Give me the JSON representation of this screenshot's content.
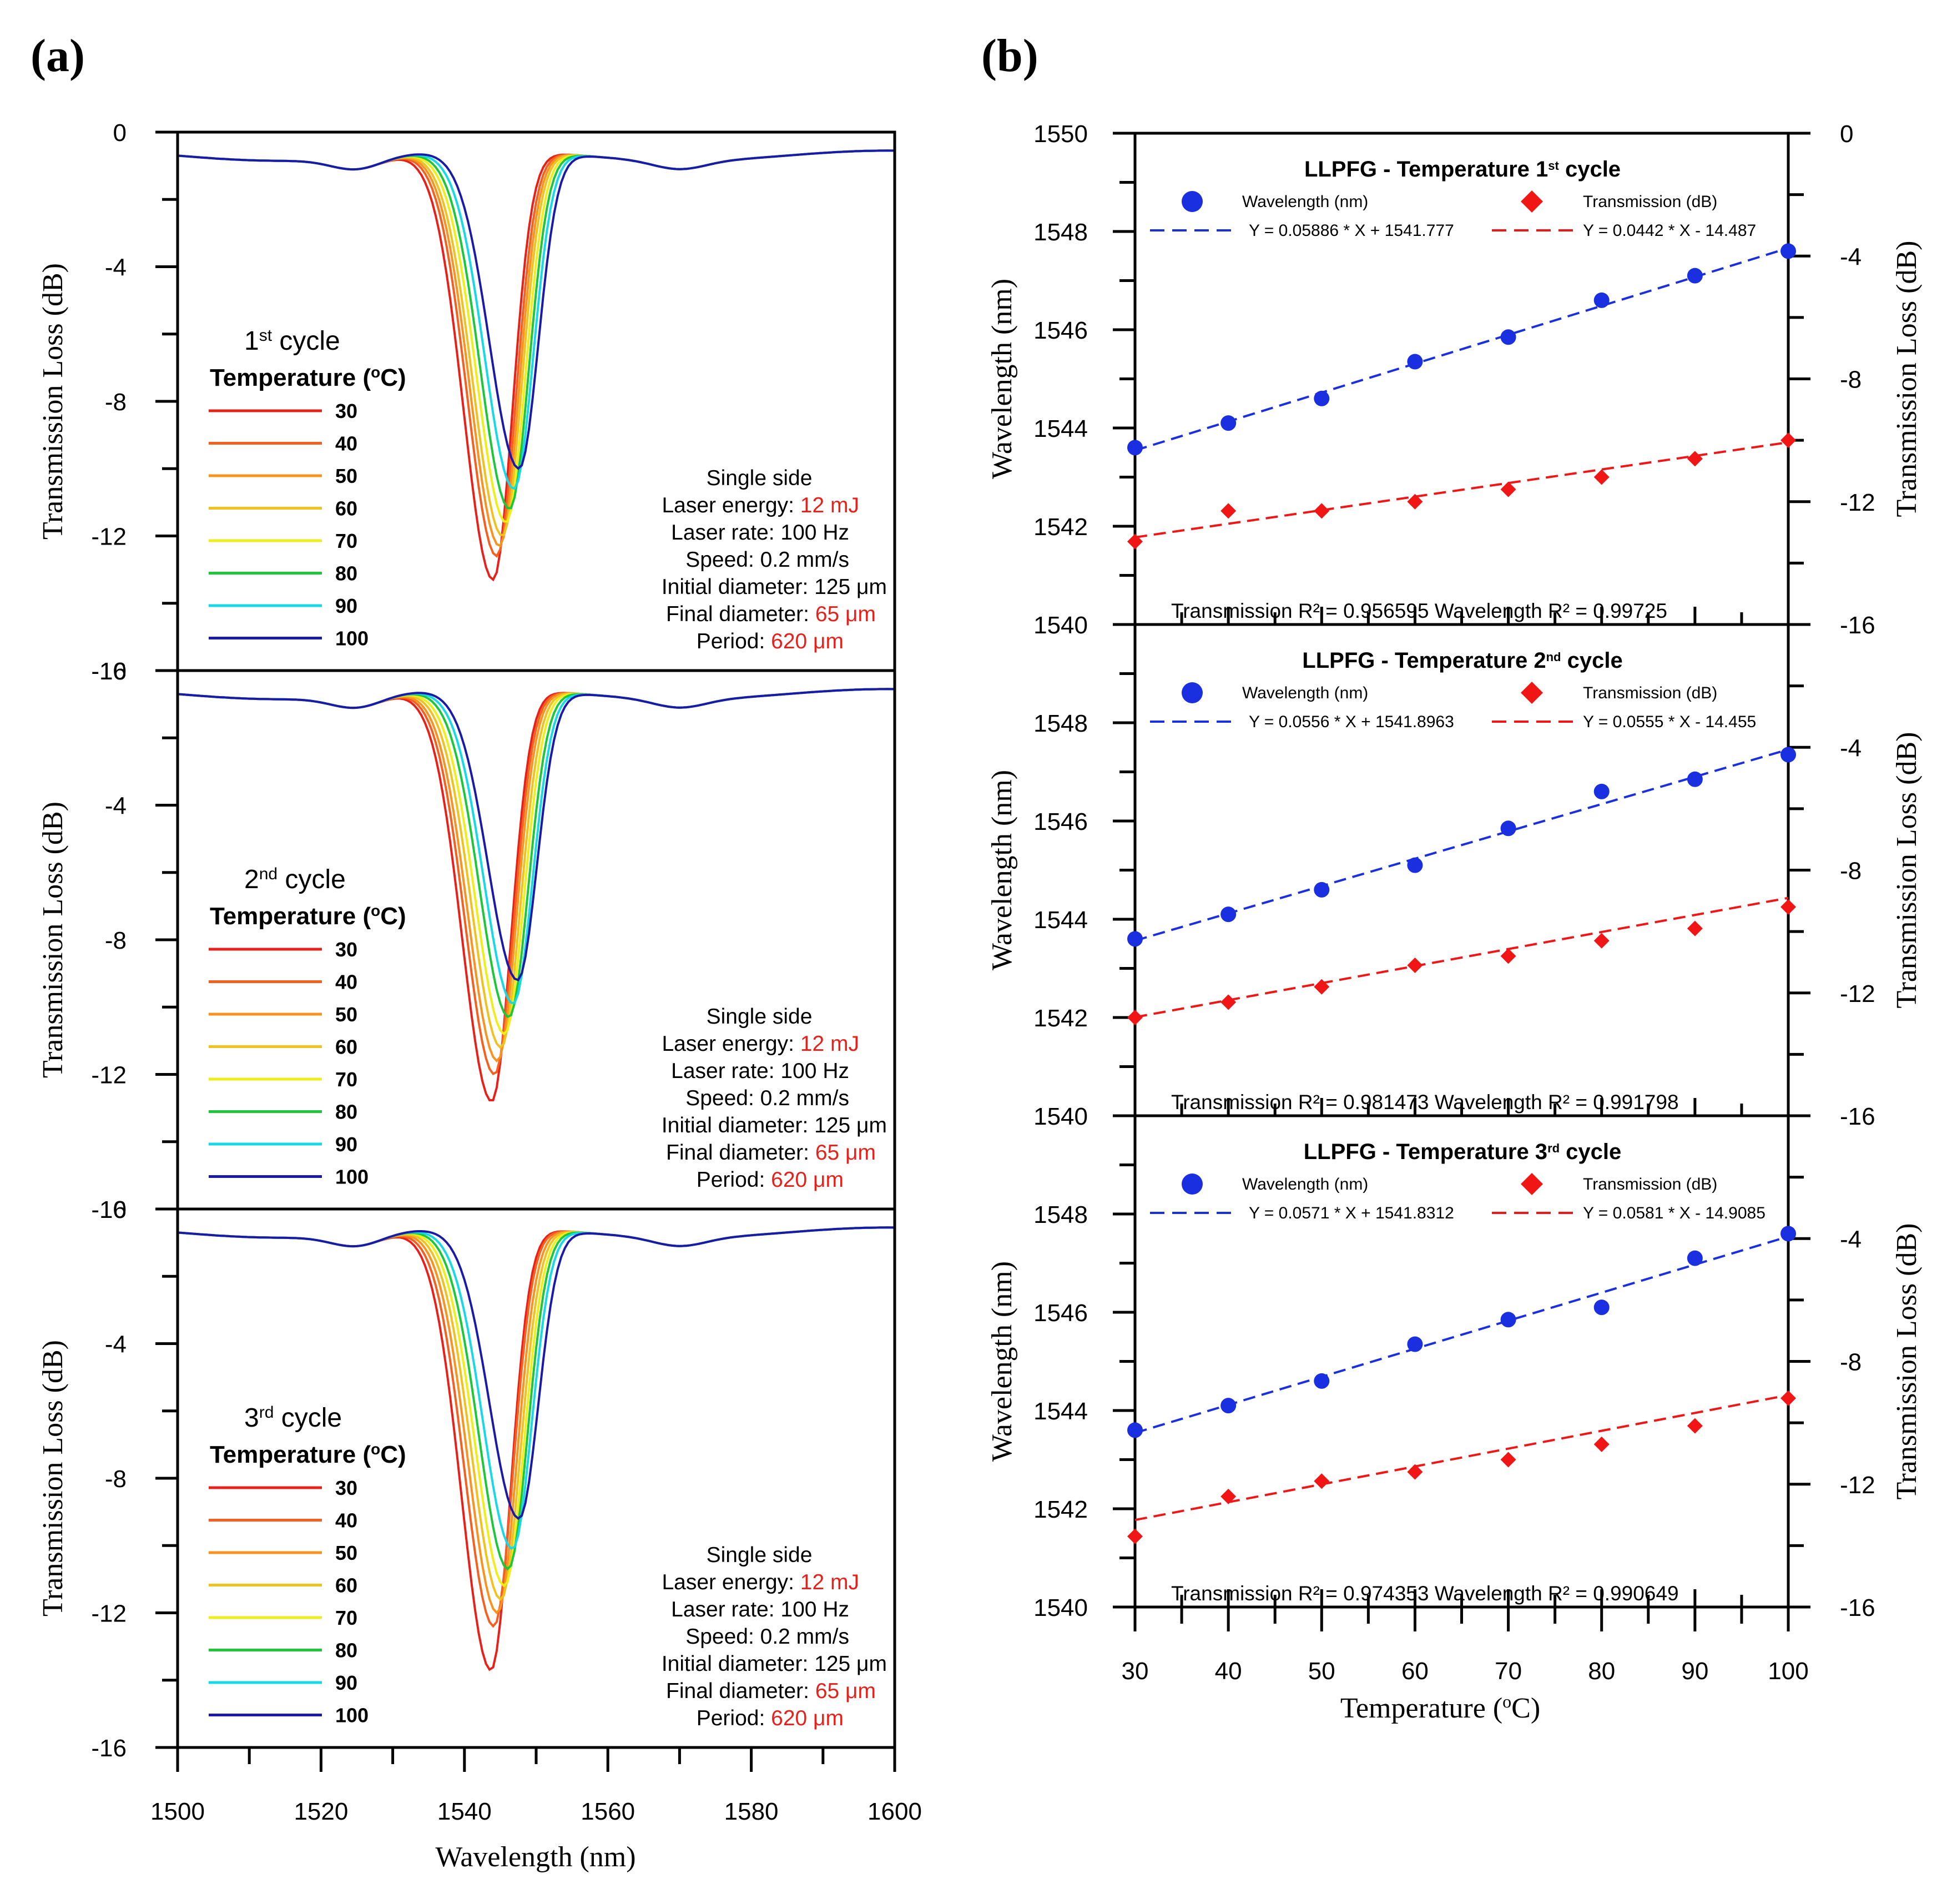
{
  "colors": {
    "series": [
      "#e8201a",
      "#f4601f",
      "#f8931f",
      "#f0c21f",
      "#eeee1a",
      "#1ec63a",
      "#17d9e6",
      "#1a1aa8"
    ],
    "wavelength_marker": "#1a2fe0",
    "transmission_marker": "#f01616",
    "highlight": "#e8201a"
  },
  "panel_a": {
    "letter_open": "(",
    "letter": "a",
    "letter_close": ")",
    "ylabel": "Transmission Loss (dB)",
    "xlabel": "Wavelength (nm)",
    "x_ticks": [
      "1500",
      "1520",
      "1540",
      "1560",
      "1580",
      "1600"
    ],
    "y_ticks": [
      "0",
      "-4",
      "-8",
      "-12",
      "-16"
    ],
    "legend_title": "Temperature (",
    "legend_title_sup": "o",
    "legend_title_end": "C)",
    "legend_items": [
      "30",
      "40",
      "50",
      "60",
      "70",
      "80",
      "90",
      "100"
    ],
    "annotations": {
      "mode": "Single side",
      "energy_label": "Laser energy: ",
      "energy_value": "12 mJ",
      "rate": "Laser rate: 100 Hz",
      "speed": "Speed: 0.2 mm/s",
      "initial": "Initial diameter: 125 μm",
      "final_label": "Final diameter: ",
      "final_value": "65 μm",
      "period_label": "Period:  ",
      "period_value": "620 μm"
    },
    "cycles": [
      {
        "num": "1",
        "sup": "st",
        "word": " cycle"
      },
      {
        "num": "2",
        "sup": "nd",
        "word": " cycle"
      },
      {
        "num": "3",
        "sup": "rd",
        "word": " cycle"
      }
    ]
  },
  "panel_b": {
    "letter_open": "(",
    "letter": "b",
    "letter_close": ")",
    "ylabel_left": "Wavelength (nm)",
    "ylabel_right": "Transmission Loss (dB)",
    "xlabel": "Temperature (",
    "xlabel_sup": "o",
    "xlabel_end": "C)",
    "x_ticks": [
      "30",
      "40",
      "50",
      "60",
      "70",
      "80",
      "90",
      "100"
    ],
    "left_ticks": [
      "1550",
      "1548",
      "1546",
      "1544",
      "1542",
      "1540"
    ],
    "right_ticks": [
      "0",
      "-4",
      "-8",
      "-12",
      "-16"
    ],
    "legend_wavelength": "Wavelength (nm)",
    "legend_transmission": "Transmission (dB)",
    "subplots": [
      {
        "title": "LLPFG - Temperature 1",
        "title_sup": "st",
        "title_end": " cycle",
        "wavelength_fit": "Y = 0.05886 * X + 1541.777",
        "transmission_fit": "Y = 0.0442 * X - 14.487",
        "r2_text": "Transmission R² = 0.956595     Wavelength    R² = 0.99725"
      },
      {
        "title": "LLPFG - Temperature 2",
        "title_sup": "nd",
        "title_end": " cycle",
        "wavelength_fit": "Y = 0.0556 * X + 1541.8963",
        "transmission_fit": "Y = 0.0555 * X - 14.455",
        "r2_text": "Transmission R² = 0.981473   Wavelength    R² = 0.991798"
      },
      {
        "title": "LLPFG - Temperature 3",
        "title_sup": "rd",
        "title_end": " cycle",
        "wavelength_fit": "Y = 0.0571 * X + 1541.8312",
        "transmission_fit": "Y = 0.0581 * X - 14.9085",
        "r2_text": "Transmission R² =  0.974353   Wavelength    R² = 0.990649"
      }
    ]
  },
  "chart_data": [
    {
      "type": "line",
      "title": "(a) 1st cycle",
      "xlabel": "Wavelength (nm)",
      "ylabel": "Transmission Loss (dB)",
      "xlim": [
        1500,
        1600
      ],
      "ylim": [
        -16,
        0
      ],
      "series": [
        {
          "name": "30",
          "dip_center": 1544.0,
          "dip_depth": -13.3
        },
        {
          "name": "40",
          "dip_center": 1544.5,
          "dip_depth": -12.6
        },
        {
          "name": "50",
          "dip_center": 1544.9,
          "dip_depth": -12.3
        },
        {
          "name": "60",
          "dip_center": 1545.3,
          "dip_depth": -12.0
        },
        {
          "name": "70",
          "dip_center": 1545.8,
          "dip_depth": -11.6
        },
        {
          "name": "80",
          "dip_center": 1546.3,
          "dip_depth": -11.2
        },
        {
          "name": "90",
          "dip_center": 1546.9,
          "dip_depth": -10.6
        },
        {
          "name": "100",
          "dip_center": 1547.6,
          "dip_depth": -10.0
        }
      ]
    },
    {
      "type": "line",
      "title": "(a) 2nd cycle",
      "xlabel": "Wavelength (nm)",
      "ylabel": "Transmission Loss (dB)",
      "xlim": [
        1500,
        1600
      ],
      "ylim": [
        -16,
        0
      ],
      "series": [
        {
          "name": "30",
          "dip_center": 1543.8,
          "dip_depth": -12.8
        },
        {
          "name": "40",
          "dip_center": 1544.2,
          "dip_depth": -12.0
        },
        {
          "name": "50",
          "dip_center": 1544.6,
          "dip_depth": -11.6
        },
        {
          "name": "60",
          "dip_center": 1545.1,
          "dip_depth": -11.2
        },
        {
          "name": "70",
          "dip_center": 1545.6,
          "dip_depth": -10.8
        },
        {
          "name": "80",
          "dip_center": 1546.2,
          "dip_depth": -10.3
        },
        {
          "name": "90",
          "dip_center": 1546.8,
          "dip_depth": -9.9
        },
        {
          "name": "100",
          "dip_center": 1547.4,
          "dip_depth": -9.2
        }
      ]
    },
    {
      "type": "line",
      "title": "(a) 3rd cycle",
      "xlabel": "Wavelength (nm)",
      "ylabel": "Transmission Loss (dB)",
      "xlim": [
        1500,
        1600
      ],
      "ylim": [
        -16,
        0
      ],
      "series": [
        {
          "name": "30",
          "dip_center": 1543.7,
          "dip_depth": -13.7
        },
        {
          "name": "40",
          "dip_center": 1544.1,
          "dip_depth": -12.4
        },
        {
          "name": "50",
          "dip_center": 1544.6,
          "dip_depth": -12.0
        },
        {
          "name": "60",
          "dip_center": 1545.1,
          "dip_depth": -11.6
        },
        {
          "name": "70",
          "dip_center": 1545.6,
          "dip_depth": -11.2
        },
        {
          "name": "80",
          "dip_center": 1546.1,
          "dip_depth": -10.7
        },
        {
          "name": "90",
          "dip_center": 1546.7,
          "dip_depth": -10.1
        },
        {
          "name": "100",
          "dip_center": 1547.6,
          "dip_depth": -9.2
        }
      ]
    },
    {
      "type": "scatter",
      "title": "LLPFG - Temperature 1st cycle",
      "xlabel": "Temperature (oC)",
      "ylabel": "Wavelength (nm)",
      "ylabel_right": "Transmission Loss (dB)",
      "x": [
        30,
        40,
        50,
        60,
        70,
        80,
        90,
        100
      ],
      "xlim": [
        30,
        100
      ],
      "ylim": [
        1540,
        1550
      ],
      "ylim_right": [
        -16,
        0
      ],
      "series": [
        {
          "name": "Wavelength (nm)",
          "axis": "left",
          "values": [
            1543.6,
            1544.1,
            1544.6,
            1545.35,
            1545.85,
            1546.6,
            1547.1,
            1547.6
          ],
          "fit": {
            "slope": 0.05886,
            "intercept": 1541.777
          }
        },
        {
          "name": "Transmission (dB)",
          "axis": "right",
          "values": [
            -13.3,
            -12.3,
            -12.3,
            -12.0,
            -11.6,
            -11.2,
            -10.6,
            -10.0
          ],
          "fit": {
            "slope": 0.0442,
            "intercept": -14.487
          }
        }
      ]
    },
    {
      "type": "scatter",
      "title": "LLPFG - Temperature 2nd cycle",
      "xlabel": "Temperature (oC)",
      "ylabel": "Wavelength (nm)",
      "ylabel_right": "Transmission Loss (dB)",
      "x": [
        30,
        40,
        50,
        60,
        70,
        80,
        90,
        100
      ],
      "xlim": [
        30,
        100
      ],
      "ylim": [
        1540,
        1550
      ],
      "ylim_right": [
        -16,
        0
      ],
      "series": [
        {
          "name": "Wavelength (nm)",
          "axis": "left",
          "values": [
            1543.6,
            1544.1,
            1544.6,
            1545.1,
            1545.85,
            1546.6,
            1546.85,
            1547.35
          ],
          "fit": {
            "slope": 0.0556,
            "intercept": 1541.8963
          }
        },
        {
          "name": "Transmission (dB)",
          "axis": "right",
          "values": [
            -12.8,
            -12.3,
            -11.8,
            -11.1,
            -10.8,
            -10.3,
            -9.9,
            -9.2
          ],
          "fit": {
            "slope": 0.0555,
            "intercept": -14.455
          }
        }
      ]
    },
    {
      "type": "scatter",
      "title": "LLPFG - Temperature 3rd cycle",
      "xlabel": "Temperature (oC)",
      "ylabel": "Wavelength (nm)",
      "ylabel_right": "Transmission Loss (dB)",
      "x": [
        30,
        40,
        50,
        60,
        70,
        80,
        90,
        100
      ],
      "xlim": [
        30,
        100
      ],
      "ylim": [
        1540,
        1550
      ],
      "ylim_right": [
        -16,
        0
      ],
      "series": [
        {
          "name": "Wavelength (nm)",
          "axis": "left",
          "values": [
            1543.6,
            1544.1,
            1544.6,
            1545.35,
            1545.85,
            1546.1,
            1547.1,
            1547.6
          ],
          "fit": {
            "slope": 0.0571,
            "intercept": 1541.8312
          }
        },
        {
          "name": "Transmission (dB)",
          "axis": "right",
          "values": [
            -13.7,
            -12.4,
            -11.9,
            -11.6,
            -11.2,
            -10.7,
            -10.1,
            -9.2
          ],
          "fit": {
            "slope": 0.0581,
            "intercept": -14.9085
          }
        }
      ]
    }
  ]
}
